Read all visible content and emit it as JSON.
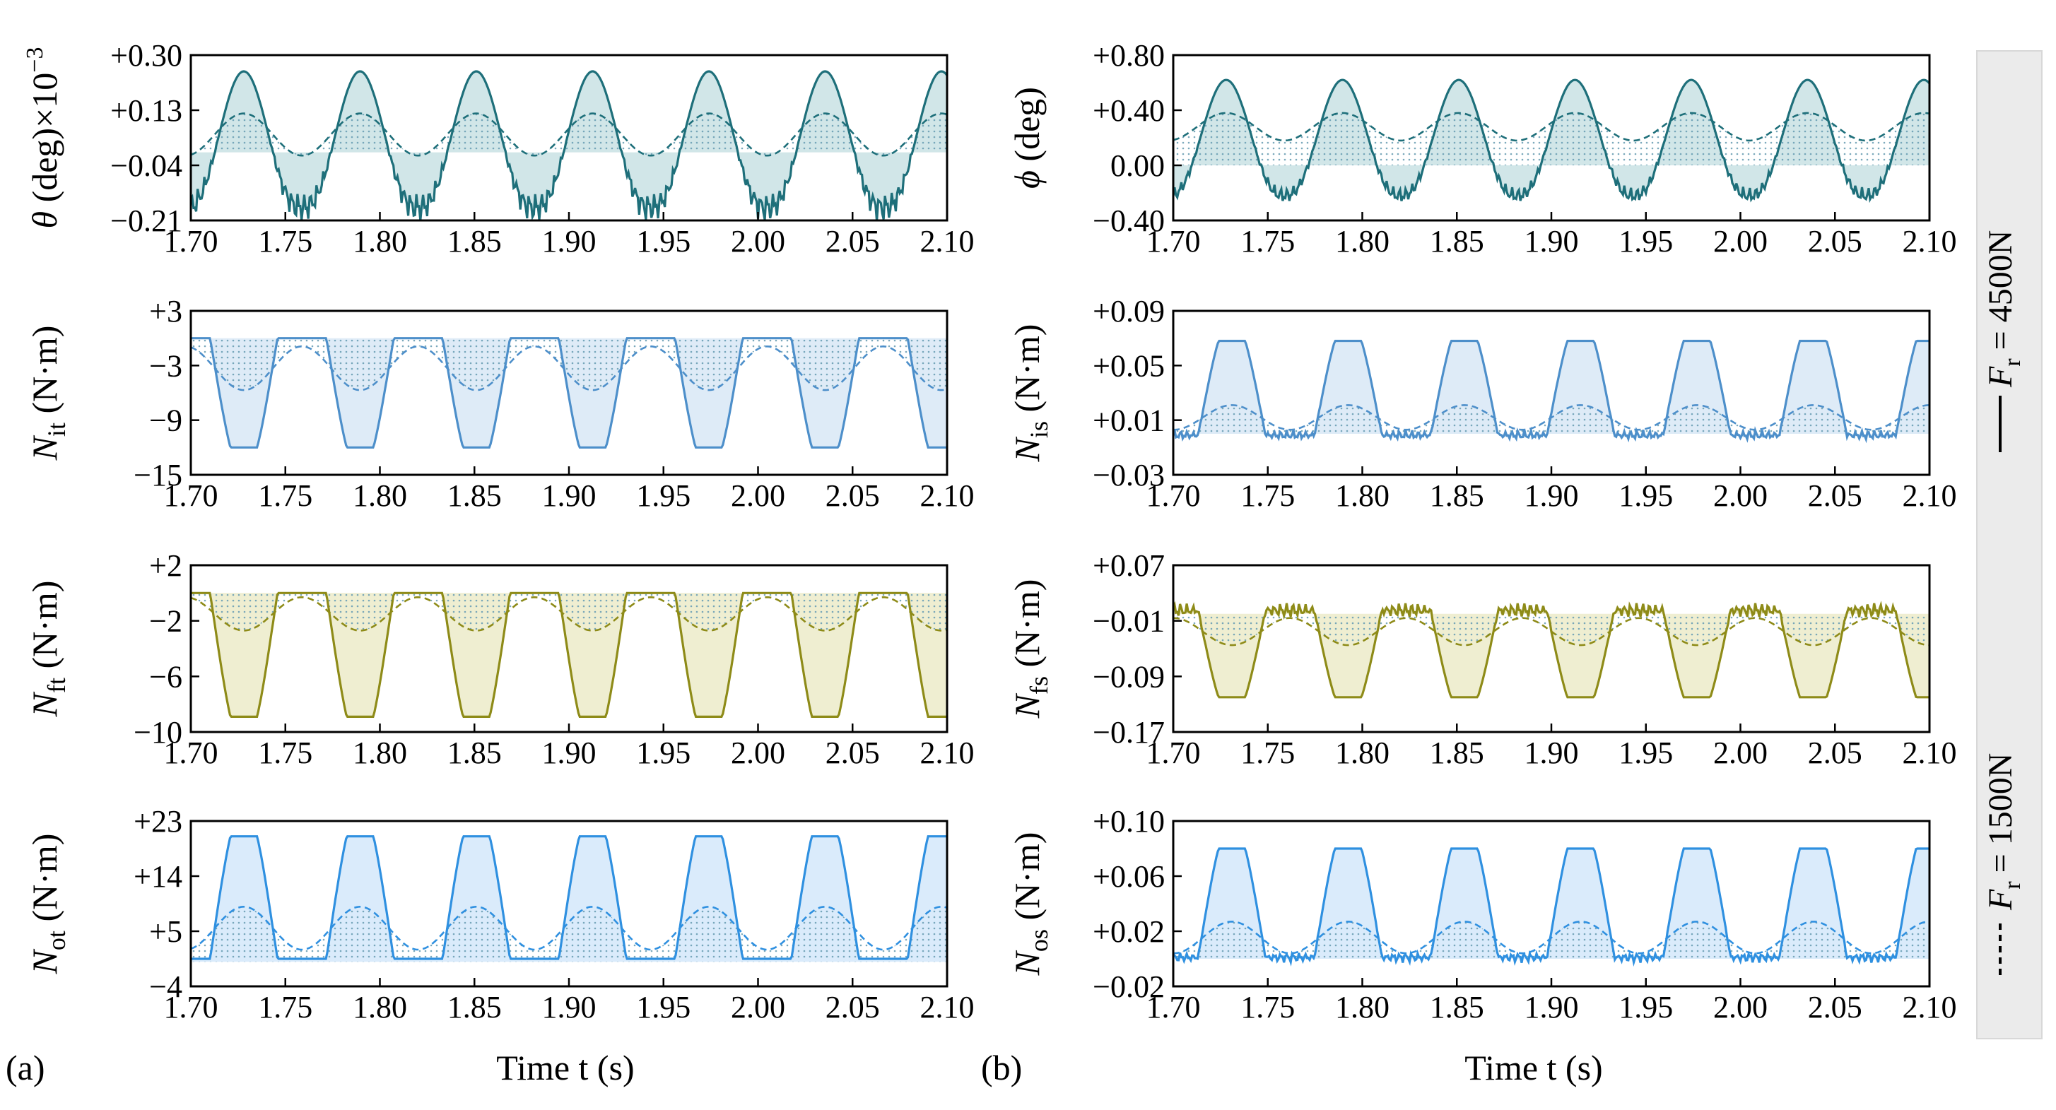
{
  "figure": {
    "panel_tags": [
      "(a)",
      "(b)"
    ],
    "xlabel": "Time t (s)",
    "legend": {
      "solid": {
        "label": "F_r = 4500N",
        "symbol": "F",
        "subscript": "r",
        "text": " = 4500N"
      },
      "dashed": {
        "label": "F_r = 1500N",
        "symbol": "F",
        "subscript": "r",
        "text": " = 1500N"
      }
    }
  },
  "chart_data": [
    {
      "id": "theta",
      "column": "a",
      "row": 0,
      "type": "line",
      "ylabel": "θ (deg)×10^−3",
      "ylabel_parts": {
        "sym": "θ",
        "sub": "",
        "unit": " (deg)×10",
        "sup": "−3"
      },
      "color": "#1e6f7a",
      "fill": "#c9e2e4",
      "yticks": [
        "+0.30",
        "+0.13",
        "−0.04",
        "−0.21"
      ],
      "ytick_values": [
        0.3,
        0.13,
        -0.04,
        -0.21
      ],
      "ylim": [
        -0.21,
        0.3
      ],
      "baseline": 0.0,
      "x": [
        1.7,
        2.1
      ],
      "xticks": [
        "1.70",
        "1.75",
        "1.80",
        "1.85",
        "1.90",
        "1.95",
        "2.00",
        "2.05",
        "2.10"
      ],
      "period_s": 0.0615,
      "first_peak_s": 1.728,
      "series": [
        {
          "name": "F_r = 4500N",
          "style": "solid",
          "peak": 0.25,
          "trough": -0.17,
          "shape": "hump",
          "noise": 0.05
        },
        {
          "name": "F_r = 1500N",
          "style": "dashed",
          "peak": 0.12,
          "trough": -0.01,
          "shape": "wave",
          "noise": 0
        }
      ]
    },
    {
      "id": "Nit",
      "column": "a",
      "row": 1,
      "type": "line",
      "ylabel": "N_it (N·m)",
      "ylabel_parts": {
        "sym": "N",
        "sub": "it",
        "unit": " (N·m)",
        "sup": ""
      },
      "color": "#4d8fca",
      "fill": "#d8e8f6",
      "yticks": [
        "+3",
        "−3",
        "−9",
        "−15"
      ],
      "ytick_values": [
        3,
        -3,
        -9,
        -15
      ],
      "ylim": [
        -15,
        3
      ],
      "baseline": 0.0,
      "x": [
        1.7,
        2.1
      ],
      "xticks": [
        "1.70",
        "1.75",
        "1.80",
        "1.85",
        "1.90",
        "1.95",
        "2.00",
        "2.05",
        "2.10"
      ],
      "period_s": 0.0615,
      "first_peak_s": 1.728,
      "series": [
        {
          "name": "F_r = 4500N",
          "style": "solid",
          "peak": -12.0,
          "trough": 0.0,
          "shape": "trap",
          "noise": 0
        },
        {
          "name": "F_r = 1500N",
          "style": "dashed",
          "peak": -5.7,
          "trough": -0.9,
          "shape": "wave",
          "noise": 0
        }
      ]
    },
    {
      "id": "Nft",
      "column": "a",
      "row": 2,
      "type": "line",
      "ylabel": "N_ft (N·m)",
      "ylabel_parts": {
        "sym": "N",
        "sub": "ft",
        "unit": " (N·m)",
        "sup": ""
      },
      "color": "#8e8b18",
      "fill": "#ecebc9",
      "yticks": [
        "+2",
        "−2",
        "−6",
        "−10"
      ],
      "ytick_values": [
        2,
        -2,
        -6,
        -10
      ],
      "ylim": [
        -10,
        2
      ],
      "baseline": 0.0,
      "x": [
        1.7,
        2.1
      ],
      "xticks": [
        "1.70",
        "1.75",
        "1.80",
        "1.85",
        "1.90",
        "1.95",
        "2.00",
        "2.05",
        "2.10"
      ],
      "period_s": 0.0615,
      "first_peak_s": 1.728,
      "series": [
        {
          "name": "F_r = 4500N",
          "style": "solid",
          "peak": -8.9,
          "trough": 0.0,
          "shape": "trap",
          "noise": 0
        },
        {
          "name": "F_r = 1500N",
          "style": "dashed",
          "peak": -2.7,
          "trough": -0.3,
          "shape": "wave",
          "noise": 0
        }
      ]
    },
    {
      "id": "Not",
      "column": "a",
      "row": 3,
      "type": "line",
      "ylabel": "N_ot (N·m)",
      "ylabel_parts": {
        "sym": "N",
        "sub": "ot",
        "unit": " (N·m)",
        "sup": ""
      },
      "color": "#2f90e0",
      "fill": "#d3e8fa",
      "yticks": [
        "+23",
        "+14",
        "+5",
        "−4"
      ],
      "ytick_values": [
        23,
        14,
        5,
        -4
      ],
      "ylim": [
        -4,
        23
      ],
      "baseline": 0.0,
      "x": [
        1.7,
        2.1
      ],
      "xticks": [
        "1.70",
        "1.75",
        "1.80",
        "1.85",
        "1.90",
        "1.95",
        "2.00",
        "2.05",
        "2.10"
      ],
      "period_s": 0.0615,
      "first_peak_s": 1.728,
      "series": [
        {
          "name": "F_r = 4500N",
          "style": "solid",
          "peak": 20.5,
          "trough": 0.5,
          "shape": "trap",
          "noise": 0
        },
        {
          "name": "F_r = 1500N",
          "style": "dashed",
          "peak": 9.0,
          "trough": 2.0,
          "shape": "wave",
          "noise": 0
        }
      ]
    },
    {
      "id": "phi",
      "column": "b",
      "row": 0,
      "type": "line",
      "ylabel": "ϕ (deg)",
      "ylabel_parts": {
        "sym": "ϕ",
        "sub": "",
        "unit": " (deg)",
        "sup": ""
      },
      "color": "#1e6f7a",
      "fill": "#c9e2e4",
      "yticks": [
        "+0.80",
        "+0.40",
        "0.00",
        "−0.40"
      ],
      "ytick_values": [
        0.8,
        0.4,
        0.0,
        -0.4
      ],
      "ylim": [
        -0.4,
        0.8
      ],
      "baseline": 0.0,
      "x": [
        1.7,
        2.1
      ],
      "xticks": [
        "1.70",
        "1.75",
        "1.80",
        "1.85",
        "1.90",
        "1.95",
        "2.00",
        "2.05",
        "2.10"
      ],
      "period_s": 0.0615,
      "first_peak_s": 1.728,
      "series": [
        {
          "name": "F_r = 4500N",
          "style": "solid",
          "peak": 0.62,
          "trough": -0.22,
          "shape": "hump",
          "noise": 0.06
        },
        {
          "name": "F_r = 1500N",
          "style": "dashed",
          "peak": 0.38,
          "trough": 0.18,
          "shape": "wave",
          "noise": 0
        }
      ]
    },
    {
      "id": "Nis",
      "column": "b",
      "row": 1,
      "type": "line",
      "ylabel": "N_is (N·m)",
      "ylabel_parts": {
        "sym": "N",
        "sub": "is",
        "unit": " (N·m)",
        "sup": ""
      },
      "color": "#4d8fca",
      "fill": "#d8e8f6",
      "yticks": [
        "+0.09",
        "+0.05",
        "+0.01",
        "−0.03"
      ],
      "ytick_values": [
        0.09,
        0.05,
        0.01,
        -0.03
      ],
      "ylim": [
        -0.03,
        0.09
      ],
      "baseline": 0.0,
      "x": [
        1.7,
        2.1
      ],
      "xticks": [
        "1.70",
        "1.75",
        "1.80",
        "1.85",
        "1.90",
        "1.95",
        "2.00",
        "2.05",
        "2.10"
      ],
      "period_s": 0.0615,
      "first_peak_s": 1.731,
      "series": [
        {
          "name": "F_r = 4500N",
          "style": "solid",
          "peak": 0.068,
          "trough": -0.001,
          "shape": "trap",
          "noise": 0.004
        },
        {
          "name": "F_r = 1500N",
          "style": "dashed",
          "peak": 0.021,
          "trough": 0.003,
          "shape": "wave",
          "noise": 0
        }
      ]
    },
    {
      "id": "Nfs",
      "column": "b",
      "row": 2,
      "type": "line",
      "ylabel": "N_fs (N·m)",
      "ylabel_parts": {
        "sym": "N",
        "sub": "fs",
        "unit": " (N·m)",
        "sup": ""
      },
      "color": "#8e8b18",
      "fill": "#ecebc9",
      "yticks": [
        "+0.07",
        "−0.01",
        "−0.09",
        "−0.17"
      ],
      "ytick_values": [
        0.07,
        -0.01,
        -0.09,
        -0.17
      ],
      "ylim": [
        -0.17,
        0.07
      ],
      "baseline": 0.0,
      "x": [
        1.7,
        2.1
      ],
      "xticks": [
        "1.70",
        "1.75",
        "1.80",
        "1.85",
        "1.90",
        "1.95",
        "2.00",
        "2.05",
        "2.10"
      ],
      "period_s": 0.0615,
      "first_peak_s": 1.731,
      "series": [
        {
          "name": "F_r = 4500N",
          "style": "solid",
          "peak": -0.12,
          "trough": 0.005,
          "shape": "trap",
          "noise": 0.012
        },
        {
          "name": "F_r = 1500N",
          "style": "dashed",
          "peak": -0.045,
          "trough": -0.006,
          "shape": "wave",
          "noise": 0
        }
      ]
    },
    {
      "id": "Nos",
      "column": "b",
      "row": 3,
      "type": "line",
      "ylabel": "N_os (N·m)",
      "ylabel_parts": {
        "sym": "N",
        "sub": "os",
        "unit": " (N·m)",
        "sup": ""
      },
      "color": "#2f90e0",
      "fill": "#d3e8fa",
      "yticks": [
        "+0.10",
        "+0.06",
        "+0.02",
        "−0.02"
      ],
      "ytick_values": [
        0.1,
        0.06,
        0.02,
        -0.02
      ],
      "ylim": [
        -0.02,
        0.1
      ],
      "baseline": 0.0,
      "x": [
        1.7,
        2.1
      ],
      "xticks": [
        "1.70",
        "1.75",
        "1.80",
        "1.85",
        "1.90",
        "1.95",
        "2.00",
        "2.05",
        "2.10"
      ],
      "period_s": 0.0615,
      "first_peak_s": 1.731,
      "series": [
        {
          "name": "F_r = 4500N",
          "style": "solid",
          "peak": 0.08,
          "trough": 0.001,
          "shape": "trap",
          "noise": 0.004
        },
        {
          "name": "F_r = 1500N",
          "style": "dashed",
          "peak": 0.027,
          "trough": 0.004,
          "shape": "wave",
          "noise": 0
        }
      ]
    }
  ]
}
